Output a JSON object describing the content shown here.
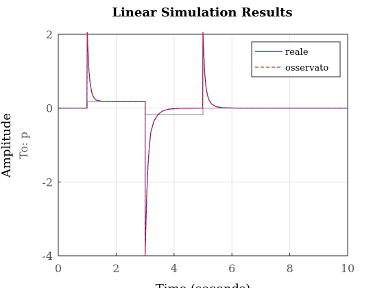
{
  "chart_data": {
    "type": "line",
    "title": "Linear Simulation Results",
    "xlabel": "Time (seconds)",
    "ylabel": "Amplitude",
    "subplot_label": "To: p",
    "xlim": [
      0,
      10
    ],
    "ylim": [
      -4,
      2
    ],
    "xticks": [
      "0",
      "2",
      "4",
      "6",
      "8",
      "10"
    ],
    "yticks": [
      "2",
      "0",
      "-2",
      "-4"
    ],
    "grid": true,
    "legend_position": "top-right",
    "input": {
      "color": "#9a9a9a",
      "points": [
        [
          0,
          0
        ],
        [
          1,
          0
        ],
        [
          1,
          0.18
        ],
        [
          3,
          0.18
        ],
        [
          3,
          -0.18
        ],
        [
          5,
          -0.18
        ],
        [
          5,
          0
        ],
        [
          10,
          0
        ]
      ]
    },
    "series": [
      {
        "name": "reale",
        "style": "solid",
        "color": "#1a1ad6",
        "points": [
          [
            0,
            0
          ],
          [
            0.99,
            0
          ],
          [
            1.0,
            2.05
          ],
          [
            1.03,
            1.5
          ],
          [
            1.06,
            1.02
          ],
          [
            1.1,
            0.68
          ],
          [
            1.15,
            0.45
          ],
          [
            1.2,
            0.32
          ],
          [
            1.3,
            0.22
          ],
          [
            1.5,
            0.185
          ],
          [
            2.0,
            0.18
          ],
          [
            3.0,
            0.18
          ],
          [
            3.0,
            -4.0
          ],
          [
            3.03,
            -3.1
          ],
          [
            3.06,
            -2.3
          ],
          [
            3.1,
            -1.55
          ],
          [
            3.15,
            -1.0
          ],
          [
            3.2,
            -0.65
          ],
          [
            3.3,
            -0.36
          ],
          [
            3.45,
            -0.17
          ],
          [
            3.6,
            -0.08
          ],
          [
            3.8,
            -0.03
          ],
          [
            4.2,
            -0.005
          ],
          [
            4.99,
            0
          ],
          [
            5.0,
            2.05
          ],
          [
            5.03,
            1.45
          ],
          [
            5.06,
            0.95
          ],
          [
            5.1,
            0.6
          ],
          [
            5.15,
            0.37
          ],
          [
            5.2,
            0.23
          ],
          [
            5.3,
            0.11
          ],
          [
            5.45,
            0.04
          ],
          [
            5.7,
            0.01
          ],
          [
            6.2,
            0
          ],
          [
            10,
            0
          ]
        ]
      },
      {
        "name": "osservato",
        "style": "dashed",
        "color": "#e0281c",
        "points": [
          [
            0,
            0
          ],
          [
            0.99,
            0
          ],
          [
            1.0,
            2.05
          ],
          [
            1.03,
            1.5
          ],
          [
            1.06,
            1.02
          ],
          [
            1.1,
            0.68
          ],
          [
            1.15,
            0.45
          ],
          [
            1.2,
            0.32
          ],
          [
            1.3,
            0.22
          ],
          [
            1.5,
            0.185
          ],
          [
            2.0,
            0.18
          ],
          [
            3.0,
            0.18
          ],
          [
            3.0,
            -4.0
          ],
          [
            3.03,
            -3.1
          ],
          [
            3.06,
            -2.3
          ],
          [
            3.1,
            -1.55
          ],
          [
            3.15,
            -1.0
          ],
          [
            3.2,
            -0.65
          ],
          [
            3.3,
            -0.36
          ],
          [
            3.45,
            -0.17
          ],
          [
            3.6,
            -0.08
          ],
          [
            3.8,
            -0.03
          ],
          [
            4.2,
            -0.005
          ],
          [
            4.99,
            0
          ],
          [
            5.0,
            2.05
          ],
          [
            5.03,
            1.45
          ],
          [
            5.06,
            0.95
          ],
          [
            5.1,
            0.6
          ],
          [
            5.15,
            0.37
          ],
          [
            5.2,
            0.23
          ],
          [
            5.3,
            0.11
          ],
          [
            5.45,
            0.04
          ],
          [
            5.7,
            0.01
          ],
          [
            6.2,
            0
          ],
          [
            10,
            0
          ]
        ]
      }
    ]
  }
}
